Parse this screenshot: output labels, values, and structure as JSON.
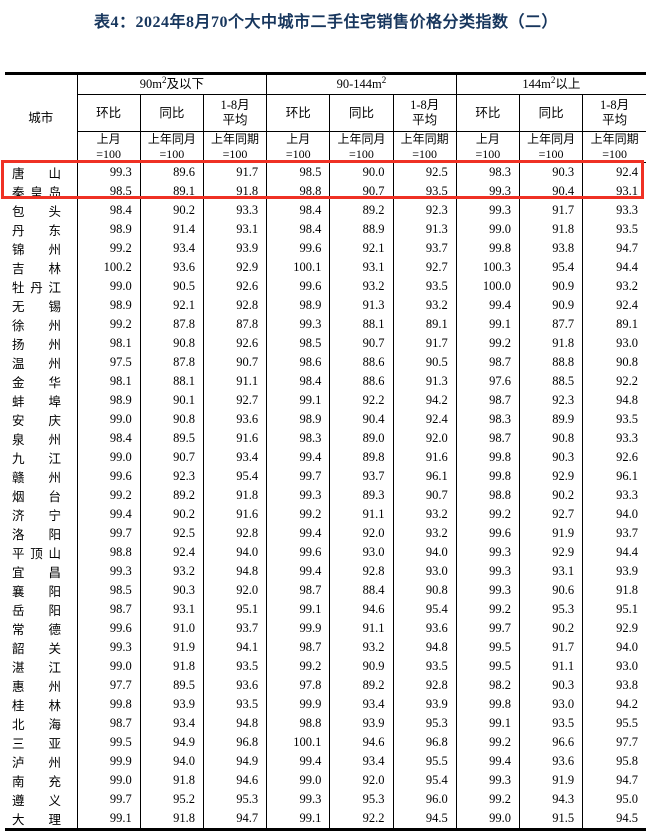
{
  "title": "表4：2024年8月70个大中城市二手住宅销售价格分类指数（二）",
  "colors": {
    "title_text": "#17365d",
    "highlight_border": "#ef3124",
    "table_border": "#000000",
    "background": "#ffffff"
  },
  "highlight": {
    "note": "red-box-around-first-two-rows"
  },
  "table": {
    "headers": {
      "city": "城市",
      "mom": "环比",
      "yoy": "同比",
      "avg_l1": "1-8月",
      "avg_l2": "平均",
      "base_mom_l1": "上月",
      "base_yoy_l1": "上年同月",
      "base_avg_l1": "上年同期",
      "base_l2": "=100"
    },
    "sections": [
      {
        "pre": "90m",
        "sup": "2",
        "post": "及以下"
      },
      {
        "pre": "90-144m",
        "sup": "2",
        "post": ""
      },
      {
        "pre": "144m",
        "sup": "2",
        "post": "以上"
      }
    ],
    "rows": [
      {
        "city": "唐山",
        "values": [
          "99.3",
          "89.6",
          "91.7",
          "98.5",
          "90.0",
          "92.5",
          "98.3",
          "90.3",
          "92.4"
        ]
      },
      {
        "city": "秦皇岛",
        "values": [
          "98.5",
          "89.1",
          "91.8",
          "98.8",
          "90.7",
          "93.5",
          "99.3",
          "90.4",
          "93.1"
        ]
      },
      {
        "city": "包头",
        "values": [
          "98.4",
          "90.2",
          "93.3",
          "98.4",
          "89.2",
          "92.3",
          "99.3",
          "91.7",
          "93.3"
        ]
      },
      {
        "city": "丹东",
        "values": [
          "98.9",
          "91.4",
          "93.1",
          "98.4",
          "88.9",
          "91.3",
          "99.0",
          "91.8",
          "93.5"
        ]
      },
      {
        "city": "锦州",
        "values": [
          "99.2",
          "93.4",
          "93.9",
          "99.6",
          "92.1",
          "93.7",
          "99.8",
          "93.8",
          "94.7"
        ]
      },
      {
        "city": "吉林",
        "values": [
          "100.2",
          "93.6",
          "92.9",
          "100.1",
          "93.1",
          "92.7",
          "100.3",
          "95.4",
          "94.4"
        ]
      },
      {
        "city": "牡丹江",
        "values": [
          "99.0",
          "90.5",
          "92.6",
          "99.6",
          "93.2",
          "93.5",
          "100.0",
          "90.9",
          "93.2"
        ]
      },
      {
        "city": "无锡",
        "values": [
          "98.9",
          "92.1",
          "92.8",
          "98.9",
          "91.3",
          "93.2",
          "99.4",
          "90.9",
          "92.4"
        ]
      },
      {
        "city": "徐州",
        "values": [
          "99.2",
          "87.8",
          "87.8",
          "99.3",
          "88.1",
          "89.1",
          "99.1",
          "87.7",
          "89.1"
        ]
      },
      {
        "city": "扬州",
        "values": [
          "98.1",
          "90.8",
          "92.6",
          "98.5",
          "90.7",
          "91.7",
          "99.2",
          "91.8",
          "93.0"
        ]
      },
      {
        "city": "温州",
        "values": [
          "97.5",
          "87.8",
          "90.7",
          "98.6",
          "88.6",
          "90.5",
          "98.7",
          "88.8",
          "90.8"
        ]
      },
      {
        "city": "金华",
        "values": [
          "98.1",
          "88.1",
          "91.1",
          "98.4",
          "88.6",
          "91.3",
          "97.6",
          "88.5",
          "92.2"
        ]
      },
      {
        "city": "蚌埠",
        "values": [
          "98.9",
          "90.1",
          "92.7",
          "99.1",
          "92.2",
          "94.2",
          "98.7",
          "92.3",
          "94.8"
        ]
      },
      {
        "city": "安庆",
        "values": [
          "99.0",
          "90.8",
          "93.6",
          "98.9",
          "90.4",
          "92.4",
          "98.3",
          "89.9",
          "93.5"
        ]
      },
      {
        "city": "泉州",
        "values": [
          "98.4",
          "89.5",
          "91.6",
          "98.3",
          "89.0",
          "92.0",
          "98.7",
          "90.8",
          "93.3"
        ]
      },
      {
        "city": "九江",
        "values": [
          "99.0",
          "90.7",
          "93.4",
          "99.4",
          "89.8",
          "91.6",
          "99.8",
          "90.3",
          "92.6"
        ]
      },
      {
        "city": "赣州",
        "values": [
          "99.6",
          "92.3",
          "95.4",
          "99.7",
          "93.7",
          "96.1",
          "99.8",
          "92.9",
          "96.1"
        ]
      },
      {
        "city": "烟台",
        "values": [
          "99.2",
          "89.2",
          "91.8",
          "99.3",
          "89.3",
          "90.7",
          "98.8",
          "90.2",
          "93.3"
        ]
      },
      {
        "city": "济宁",
        "values": [
          "99.4",
          "90.2",
          "91.6",
          "99.2",
          "91.1",
          "93.2",
          "99.2",
          "92.7",
          "94.0"
        ]
      },
      {
        "city": "洛阳",
        "values": [
          "99.7",
          "92.5",
          "92.8",
          "99.4",
          "92.0",
          "93.2",
          "99.6",
          "91.9",
          "93.7"
        ]
      },
      {
        "city": "平顶山",
        "values": [
          "98.8",
          "92.4",
          "94.0",
          "99.6",
          "93.0",
          "94.0",
          "99.3",
          "92.9",
          "94.4"
        ]
      },
      {
        "city": "宜昌",
        "values": [
          "99.3",
          "93.2",
          "94.8",
          "99.4",
          "92.8",
          "93.0",
          "99.3",
          "93.1",
          "93.9"
        ]
      },
      {
        "city": "襄阳",
        "values": [
          "98.5",
          "90.3",
          "92.0",
          "98.7",
          "88.4",
          "90.8",
          "99.3",
          "90.6",
          "91.8"
        ]
      },
      {
        "city": "岳阳",
        "values": [
          "98.7",
          "93.1",
          "95.1",
          "99.1",
          "94.6",
          "95.4",
          "99.2",
          "95.3",
          "95.1"
        ]
      },
      {
        "city": "常德",
        "values": [
          "99.6",
          "91.0",
          "93.7",
          "99.9",
          "91.1",
          "93.6",
          "99.7",
          "90.2",
          "92.9"
        ]
      },
      {
        "city": "韶关",
        "values": [
          "99.3",
          "91.9",
          "94.1",
          "98.7",
          "93.2",
          "94.8",
          "99.5",
          "91.7",
          "94.0"
        ]
      },
      {
        "city": "湛江",
        "values": [
          "99.0",
          "91.8",
          "93.5",
          "99.2",
          "90.9",
          "93.5",
          "99.5",
          "91.1",
          "93.0"
        ]
      },
      {
        "city": "惠州",
        "values": [
          "97.7",
          "89.5",
          "93.6",
          "97.8",
          "89.2",
          "92.8",
          "98.2",
          "90.3",
          "93.8"
        ]
      },
      {
        "city": "桂林",
        "values": [
          "99.8",
          "93.9",
          "93.5",
          "99.9",
          "93.4",
          "93.9",
          "99.8",
          "93.0",
          "94.2"
        ]
      },
      {
        "city": "北海",
        "values": [
          "98.7",
          "93.4",
          "94.8",
          "98.8",
          "93.9",
          "95.3",
          "99.1",
          "93.5",
          "95.5"
        ]
      },
      {
        "city": "三亚",
        "values": [
          "99.5",
          "94.9",
          "96.8",
          "100.1",
          "94.6",
          "96.8",
          "99.2",
          "96.6",
          "97.7"
        ]
      },
      {
        "city": "泸州",
        "values": [
          "99.9",
          "94.0",
          "94.9",
          "99.4",
          "93.4",
          "95.5",
          "99.4",
          "93.6",
          "95.8"
        ]
      },
      {
        "city": "南充",
        "values": [
          "99.0",
          "91.8",
          "94.6",
          "99.0",
          "92.0",
          "95.4",
          "99.3",
          "91.9",
          "94.7"
        ]
      },
      {
        "city": "遵义",
        "values": [
          "99.7",
          "95.2",
          "95.3",
          "99.3",
          "95.3",
          "96.0",
          "99.2",
          "94.3",
          "95.0"
        ]
      },
      {
        "city": "大理",
        "values": [
          "99.1",
          "91.8",
          "94.7",
          "99.1",
          "92.2",
          "94.5",
          "99.0",
          "91.5",
          "94.5"
        ]
      }
    ]
  }
}
